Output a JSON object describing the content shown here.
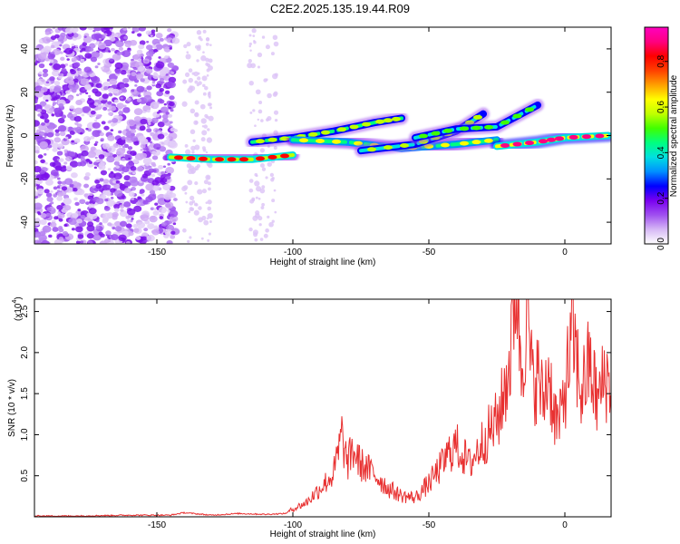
{
  "title": "C2E2.2025.135.19.44.R09",
  "chart_data": [
    {
      "type": "heatmap",
      "xlabel": "Height of straight line (km)",
      "ylabel": "Frequency (Hz)",
      "xlim": [
        -195,
        17
      ],
      "ylim": [
        -50,
        50
      ],
      "xticks": [
        -150,
        -100,
        -50,
        0
      ],
      "yticks": [
        -40,
        -20,
        0,
        20,
        40
      ],
      "colorbar": {
        "label": "Normalized spectral amplitude",
        "range": [
          0,
          0.95
        ],
        "ticks": [
          0.0,
          0.2,
          0.4,
          0.6,
          0.8
        ],
        "colors": [
          "#ffffff",
          "#d6b8f5",
          "#a050f0",
          "#7a00f0",
          "#0000ff",
          "#0090ff",
          "#00e0e0",
          "#00ff80",
          "#40ff00",
          "#c0ff00",
          "#ffff00",
          "#ffa000",
          "#ff4000",
          "#ff0000",
          "#ff0080",
          "#ff00c0"
        ]
      },
      "ridges": [
        {
          "points": [
            [
              -145,
              -10
            ],
            [
              -130,
              -11
            ],
            [
              -115,
              -11
            ],
            [
              -100,
              -9
            ]
          ],
          "amplitude": 0.8
        },
        {
          "points": [
            [
              -115,
              -3
            ],
            [
              -100,
              -1
            ],
            [
              -85,
              2
            ],
            [
              -70,
              6
            ],
            [
              -60,
              8
            ]
          ],
          "amplitude": 0.6
        },
        {
          "points": [
            [
              -100,
              -2
            ],
            [
              -80,
              -3
            ],
            [
              -60,
              -6
            ],
            [
              -40,
              -4
            ],
            [
              -25,
              -2
            ]
          ],
          "amplitude": 0.65
        },
        {
          "points": [
            [
              -75,
              -7
            ],
            [
              -55,
              -4
            ],
            [
              -40,
              2
            ],
            [
              -30,
              10
            ]
          ],
          "amplitude": 0.55
        },
        {
          "points": [
            [
              -55,
              -1
            ],
            [
              -40,
              3
            ],
            [
              -25,
              4
            ],
            [
              -10,
              14
            ]
          ],
          "amplitude": 0.5
        },
        {
          "points": [
            [
              -25,
              -5
            ],
            [
              -10,
              -3
            ],
            [
              0,
              -1
            ],
            [
              16,
              0
            ]
          ],
          "amplitude": 0.9
        }
      ]
    },
    {
      "type": "line",
      "xlabel": "Height of straight line (km)",
      "ylabel": "SNR (10 * v/v)",
      "scale_note": "(x10",
      "scale_exp": "4",
      "xlim": [
        -195,
        17
      ],
      "ylim": [
        0,
        2.65
      ],
      "xticks": [
        -150,
        -100,
        -50,
        0
      ],
      "yticks": [
        0.5,
        1.0,
        1.5,
        2.0,
        2.5
      ],
      "series": [
        {
          "color": "#e83030",
          "x": [
            -195,
            -180,
            -160,
            -145,
            -140,
            -130,
            -120,
            -110,
            -103,
            -100,
            -95,
            -90,
            -85,
            -82,
            -80,
            -78,
            -75,
            -70,
            -65,
            -60,
            -55,
            -50,
            -45,
            -42,
            -40,
            -35,
            -30,
            -25,
            -23,
            -20,
            -18,
            -16,
            -14,
            -12,
            -10,
            -8,
            -6,
            -4,
            -2,
            0,
            3,
            6,
            9,
            12,
            15,
            17
          ],
          "y": [
            0.01,
            0.01,
            0.02,
            0.02,
            0.05,
            0.02,
            0.04,
            0.03,
            0.04,
            0.08,
            0.15,
            0.3,
            0.45,
            0.85,
            0.55,
            0.7,
            0.55,
            0.45,
            0.3,
            0.22,
            0.2,
            0.35,
            0.55,
            0.7,
            0.75,
            0.55,
            0.8,
            1.0,
            1.2,
            1.7,
            2.6,
            1.55,
            2.2,
            1.4,
            1.5,
            1.2,
            1.55,
            1.1,
            0.95,
            1.35,
            1.9,
            1.3,
            1.6,
            1.2,
            1.5,
            1.3
          ]
        }
      ]
    }
  ]
}
